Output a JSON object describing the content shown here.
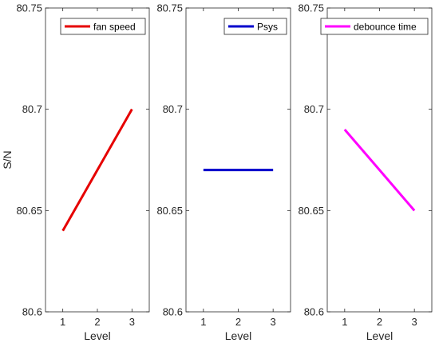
{
  "chart_data": [
    {
      "type": "line",
      "x": [
        1,
        2,
        3
      ],
      "series": [
        {
          "name": "fan speed",
          "values": [
            80.64,
            80.67,
            80.7
          ],
          "color": "#e60000"
        }
      ],
      "xticks": [
        "1",
        "2",
        "3"
      ],
      "yticks": [
        "80.6",
        "80.65",
        "80.7",
        "80.75"
      ],
      "xlabel": "Level",
      "ylabel": "S/N",
      "xlim": [
        0.5,
        3.5
      ],
      "ylim": [
        80.6,
        80.75
      ],
      "grid": false,
      "legend_position": "top-right"
    },
    {
      "type": "line",
      "x": [
        1,
        2,
        3
      ],
      "series": [
        {
          "name": "Psys",
          "values": [
            80.67,
            80.67,
            80.67
          ],
          "color": "#0000cc"
        }
      ],
      "xticks": [
        "1",
        "2",
        "3"
      ],
      "yticks": [
        "80.6",
        "80.65",
        "80.7",
        "80.75"
      ],
      "xlabel": "Level",
      "ylabel": "",
      "xlim": [
        0.5,
        3.5
      ],
      "ylim": [
        80.6,
        80.75
      ],
      "grid": false,
      "legend_position": "top-right"
    },
    {
      "type": "line",
      "x": [
        1,
        2,
        3
      ],
      "series": [
        {
          "name": "debounce time",
          "values": [
            80.69,
            80.67,
            80.65
          ],
          "color": "#ff00ff"
        }
      ],
      "xticks": [
        "1",
        "2",
        "3"
      ],
      "yticks": [
        "80.6",
        "80.65",
        "80.7",
        "80.75"
      ],
      "xlabel": "Level",
      "ylabel": "",
      "xlim": [
        0.5,
        3.5
      ],
      "ylim": [
        80.6,
        80.75
      ],
      "grid": false,
      "legend_position": "top-right"
    }
  ]
}
